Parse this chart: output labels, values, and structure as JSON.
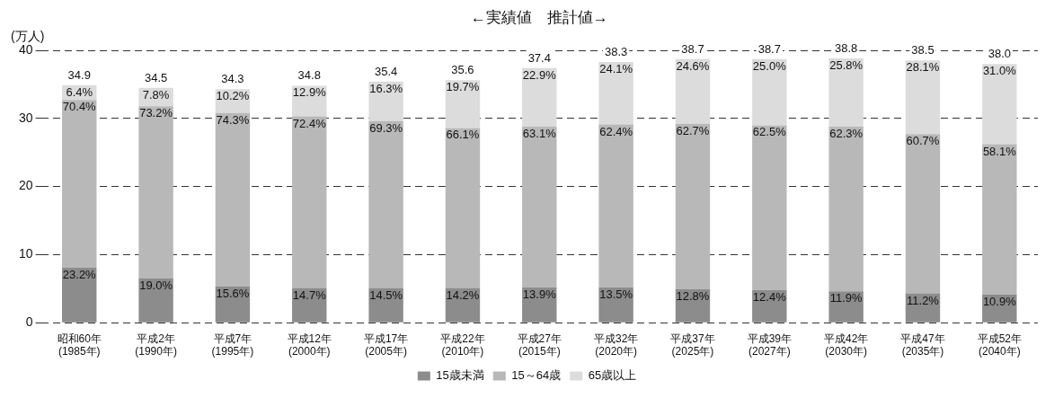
{
  "chart_data": {
    "type": "bar",
    "stacked": true,
    "ylabel": "(万人)",
    "annotations": [
      "←実績値　推計値→",
      {
        "text": "23.2%",
        "x": "昭和60年\n(1985年)",
        "y": 8.1
      },
      {
        "text": "70.4%",
        "x": "昭和60年\n(1985年)",
        "y": 32.7
      },
      {
        "text": "6.4%",
        "x": "昭和60年\n(1985年)",
        "y": 34.9
      },
      {
        "text": "19.0%",
        "x": "平成2年\n(1990年)",
        "y": 6.5
      },
      {
        "text": "73.2%",
        "x": "平成2年\n(1990年)",
        "y": 31.8
      },
      {
        "text": "7.8%",
        "x": "平成2年\n(1990年)",
        "y": 34.5
      },
      {
        "text": "15.6%",
        "x": "平成7年\n(1995年)",
        "y": 5.3
      },
      {
        "text": "74.3%",
        "x": "平成7年\n(1995年)",
        "y": 30.8
      },
      {
        "text": "10.2%",
        "x": "平成7年\n(1995年)",
        "y": 34.3
      },
      {
        "text": "14.7%",
        "x": "平成12年\n(2000年)",
        "y": 5.1
      },
      {
        "text": "72.4%",
        "x": "平成12年\n(2000年)",
        "y": 30.3
      },
      {
        "text": "12.9%",
        "x": "平成12年\n(2000年)",
        "y": 34.8
      },
      {
        "text": "14.5%",
        "x": "平成17年\n(2005年)",
        "y": 5.1
      },
      {
        "text": "69.3%",
        "x": "平成17年\n(2005年)",
        "y": 29.6
      },
      {
        "text": "16.3%",
        "x": "平成17年\n(2005年)",
        "y": 35.4
      },
      {
        "text": "14.2%",
        "x": "平成22年\n(2010年)",
        "y": 5.1
      },
      {
        "text": "66.1%",
        "x": "平成22年\n(2010年)",
        "y": 28.6
      },
      {
        "text": "19.7%",
        "x": "平成22年\n(2010年)",
        "y": 35.6
      },
      {
        "text": "13.9%",
        "x": "平成27年\n(2015年)",
        "y": 5.2
      },
      {
        "text": "63.1%",
        "x": "平成27年\n(2015年)",
        "y": 28.8
      },
      {
        "text": "22.9%",
        "x": "平成27年\n(2015年)",
        "y": 37.4
      },
      {
        "text": "13.5%",
        "x": "平成32年\n(2020年)",
        "y": 5.2
      },
      {
        "text": "62.4%",
        "x": "平成32年\n(2020年)",
        "y": 29.1
      },
      {
        "text": "24.1%",
        "x": "平成32年\n(2020年)",
        "y": 38.3
      },
      {
        "text": "12.8%",
        "x": "平成37年\n(2025年)",
        "y": 4.9
      },
      {
        "text": "62.7%",
        "x": "平成37年\n(2025年)",
        "y": 29.2
      },
      {
        "text": "24.6%",
        "x": "平成37年\n(2025年)",
        "y": 38.7
      },
      {
        "text": "12.4%",
        "x": "平成39年\n(2027年)",
        "y": 4.8
      },
      {
        "text": "62.5%",
        "x": "平成39年\n(2027年)",
        "y": 29.0
      },
      {
        "text": "25.0%",
        "x": "平成39年\n(2027年)",
        "y": 38.7
      },
      {
        "text": "11.9%",
        "x": "平成42年\n(2030年)",
        "y": 4.6
      },
      {
        "text": "62.3%",
        "x": "平成42年\n(2030年)",
        "y": 28.8
      },
      {
        "text": "25.8%",
        "x": "平成42年\n(2030年)",
        "y": 38.8
      },
      {
        "text": "11.2%",
        "x": "平成47年\n(2035年)",
        "y": 4.3
      },
      {
        "text": "60.7%",
        "x": "平成47年\n(2035年)",
        "y": 27.7
      },
      {
        "text": "28.1%",
        "x": "平成47年\n(2035年)",
        "y": 38.5
      },
      {
        "text": "10.9%",
        "x": "平成52年\n(2040年)",
        "y": 4.1
      },
      {
        "text": "58.1%",
        "x": "平成52年\n(2040年)",
        "y": 26.2
      },
      {
        "text": "31.0%",
        "x": "平成52年\n(2040年)",
        "y": 38.0
      }
    ],
    "categories": [
      "昭和60年\n(1985年)",
      "平成2年\n(1990年)",
      "平成7年\n(1995年)",
      "平成12年\n(2000年)",
      "平成17年\n(2005年)",
      "平成22年\n(2010年)",
      "平成27年\n(2015年)",
      "平成32年\n(2020年)",
      "平成37年\n(2025年)",
      "平成39年\n(2027年)",
      "平成42年\n(2030年)",
      "平成47年\n(2035年)",
      "平成52年\n(2040年)"
    ],
    "series": [
      {
        "name": "15歳未満",
        "color": "#8c8c8c",
        "values": [
          8.1,
          6.5,
          5.3,
          5.1,
          5.1,
          5.1,
          5.2,
          5.2,
          4.9,
          4.8,
          4.6,
          4.3,
          4.1
        ]
      },
      {
        "name": "15～64歳",
        "color": "#b8b8b8",
        "values": [
          24.6,
          25.3,
          25.5,
          25.2,
          24.5,
          23.5,
          23.6,
          23.9,
          24.3,
          24.2,
          24.2,
          23.4,
          22.1
        ]
      },
      {
        "name": "65歳以上",
        "color": "#dcdcdc",
        "values": [
          2.2,
          2.7,
          3.5,
          4.5,
          5.8,
          7.0,
          8.6,
          9.2,
          9.5,
          9.7,
          10.0,
          10.8,
          11.8
        ]
      }
    ],
    "totals": [
      "34.9",
      "34.5",
      "34.3",
      "34.8",
      "35.4",
      "35.6",
      "37.4",
      "38.3",
      "38.7",
      "38.7",
      "38.8",
      "38.5",
      "38.0"
    ],
    "ylim": [
      0,
      40
    ],
    "yticks": [
      0,
      10,
      20,
      30,
      40
    ],
    "grid": "y",
    "legend": "bottom"
  }
}
